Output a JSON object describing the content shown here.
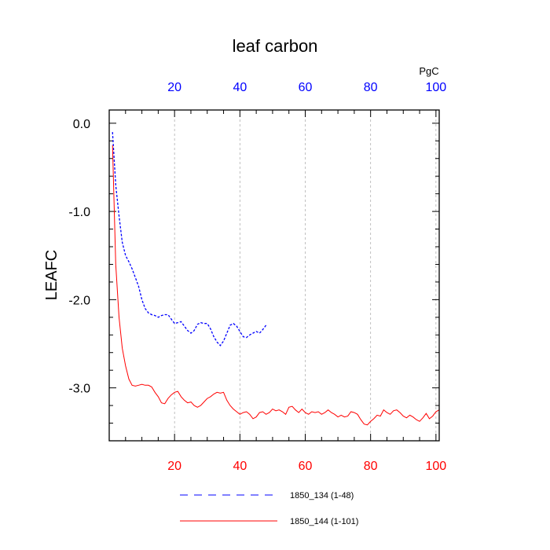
{
  "chart_data": {
    "type": "line",
    "title": "leaf carbon",
    "ylabel": "LEAFC",
    "top_axis_unit": "PgC",
    "xlim": [
      0,
      101
    ],
    "ylim": [
      -3.6,
      0.15
    ],
    "y_ticks": [
      {
        "value": 0.0,
        "label": "0.0"
      },
      {
        "value": -1.0,
        "label": "-1.0"
      },
      {
        "value": -2.0,
        "label": "-2.0"
      },
      {
        "value": -3.0,
        "label": "-3.0"
      }
    ],
    "top_ticks": [
      {
        "value": 20,
        "label": "20"
      },
      {
        "value": 40,
        "label": "40"
      },
      {
        "value": 60,
        "label": "60"
      },
      {
        "value": 80,
        "label": "80"
      },
      {
        "value": 100,
        "label": "100"
      }
    ],
    "bottom_ticks": [
      {
        "value": 20,
        "label": "20"
      },
      {
        "value": 40,
        "label": "40"
      },
      {
        "value": 60,
        "label": "60"
      },
      {
        "value": 80,
        "label": "80"
      },
      {
        "value": 100,
        "label": "100"
      }
    ],
    "vertical_grid": [
      20,
      40,
      60,
      80,
      100
    ],
    "series": [
      {
        "name": "1850_134 (1-48)",
        "color": "#0000ff",
        "style": "dashed",
        "x": [
          1,
          2,
          3,
          4,
          5,
          6,
          7,
          8,
          9,
          10,
          11,
          12,
          13,
          14,
          15,
          16,
          17,
          18,
          19,
          20,
          21,
          22,
          23,
          24,
          25,
          26,
          27,
          28,
          29,
          30,
          31,
          32,
          33,
          34,
          35,
          36,
          37,
          38,
          39,
          40,
          41,
          42,
          43,
          44,
          45,
          46,
          47,
          48
        ],
        "y": [
          -0.1,
          -0.7,
          -1.05,
          -1.35,
          -1.5,
          -1.57,
          -1.65,
          -1.75,
          -1.85,
          -2.0,
          -2.1,
          -2.15,
          -2.17,
          -2.18,
          -2.2,
          -2.18,
          -2.17,
          -2.17,
          -2.22,
          -2.27,
          -2.26,
          -2.25,
          -2.3,
          -2.35,
          -2.38,
          -2.35,
          -2.28,
          -2.26,
          -2.27,
          -2.27,
          -2.33,
          -2.42,
          -2.48,
          -2.52,
          -2.47,
          -2.38,
          -2.29,
          -2.27,
          -2.3,
          -2.36,
          -2.42,
          -2.43,
          -2.4,
          -2.38,
          -2.36,
          -2.38,
          -2.34,
          -2.29
        ]
      },
      {
        "name": "1850_144 (1-101)",
        "color": "#ff0000",
        "style": "solid",
        "x": [
          1,
          2,
          3,
          4,
          5,
          6,
          7,
          8,
          9,
          10,
          11,
          12,
          13,
          14,
          15,
          16,
          17,
          18,
          19,
          20,
          21,
          22,
          23,
          24,
          25,
          26,
          27,
          28,
          29,
          30,
          31,
          32,
          33,
          34,
          35,
          36,
          37,
          38,
          39,
          40,
          41,
          42,
          43,
          44,
          45,
          46,
          47,
          48,
          49,
          50,
          51,
          52,
          53,
          54,
          55,
          56,
          57,
          58,
          59,
          60,
          61,
          62,
          63,
          64,
          65,
          66,
          67,
          68,
          69,
          70,
          71,
          72,
          73,
          74,
          75,
          76,
          77,
          78,
          79,
          80,
          81,
          82,
          83,
          84,
          85,
          86,
          87,
          88,
          89,
          90,
          91,
          92,
          93,
          94,
          95,
          96,
          97,
          98,
          99,
          100,
          101
        ],
        "y": [
          -0.25,
          -1.6,
          -2.2,
          -2.55,
          -2.75,
          -2.9,
          -2.97,
          -2.98,
          -2.97,
          -2.96,
          -2.97,
          -2.97,
          -2.99,
          -3.05,
          -3.1,
          -3.17,
          -3.18,
          -3.12,
          -3.08,
          -3.05,
          -3.04,
          -3.1,
          -3.14,
          -3.17,
          -3.16,
          -3.2,
          -3.22,
          -3.2,
          -3.16,
          -3.12,
          -3.1,
          -3.07,
          -3.05,
          -3.06,
          -3.05,
          -3.14,
          -3.2,
          -3.24,
          -3.27,
          -3.3,
          -3.28,
          -3.27,
          -3.3,
          -3.35,
          -3.33,
          -3.28,
          -3.27,
          -3.3,
          -3.28,
          -3.24,
          -3.26,
          -3.25,
          -3.27,
          -3.3,
          -3.22,
          -3.21,
          -3.25,
          -3.28,
          -3.24,
          -3.28,
          -3.3,
          -3.27,
          -3.28,
          -3.27,
          -3.3,
          -3.28,
          -3.25,
          -3.28,
          -3.3,
          -3.33,
          -3.31,
          -3.33,
          -3.32,
          -3.27,
          -3.28,
          -3.3,
          -3.36,
          -3.41,
          -3.42,
          -3.38,
          -3.35,
          -3.31,
          -3.32,
          -3.25,
          -3.28,
          -3.3,
          -3.26,
          -3.25,
          -3.28,
          -3.32,
          -3.34,
          -3.31,
          -3.33,
          -3.36,
          -3.38,
          -3.34,
          -3.29,
          -3.35,
          -3.32,
          -3.27,
          -3.25
        ]
      }
    ],
    "legend": {
      "placement": "bottom"
    }
  }
}
